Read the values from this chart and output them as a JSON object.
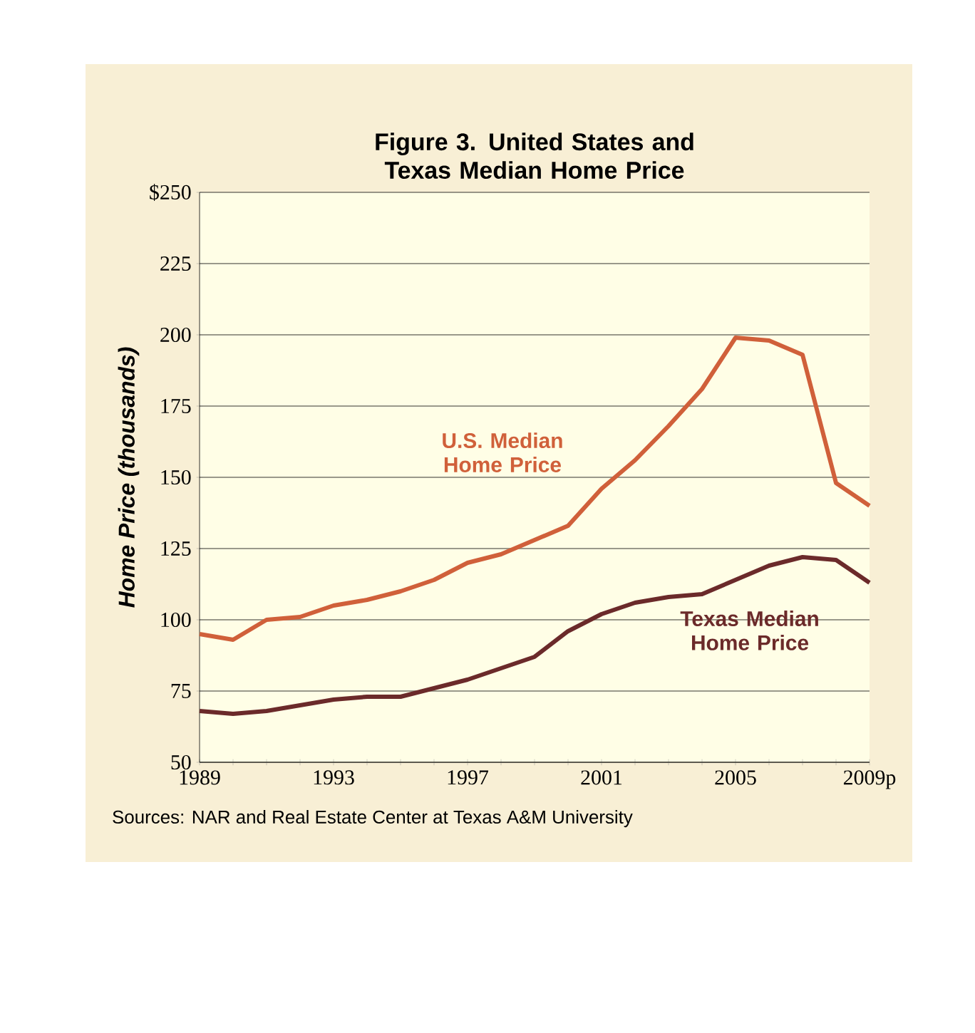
{
  "chart_data": {
    "type": "line",
    "title": "Figure 3. United States and Texas Median Home Price",
    "ylabel": "Home Price (thousands)",
    "x": [
      1989,
      1990,
      1991,
      1992,
      1993,
      1994,
      1995,
      1996,
      1997,
      1998,
      1999,
      2000,
      2001,
      2002,
      2003,
      2004,
      2005,
      2006,
      2007,
      2008,
      2009
    ],
    "series": [
      {
        "name": "U.S. Median Home Price",
        "color": "#d0603a",
        "values": [
          95,
          93,
          100,
          101,
          105,
          107,
          110,
          114,
          120,
          123,
          128,
          133,
          146,
          156,
          168,
          181,
          199,
          198,
          193,
          148,
          140
        ]
      },
      {
        "name": "Texas Median Home Price",
        "color": "#6b2a2a",
        "values": [
          68,
          67,
          68,
          70,
          72,
          73,
          73,
          76,
          79,
          83,
          87,
          96,
          102,
          106,
          108,
          109,
          114,
          119,
          122,
          121,
          113
        ]
      }
    ],
    "xlim": [
      1989,
      2009
    ],
    "ylim": [
      50,
      250
    ],
    "xticks": [
      {
        "value": 1989,
        "label": "1989"
      },
      {
        "value": 1990,
        "label": null
      },
      {
        "value": 1991,
        "label": null
      },
      {
        "value": 1992,
        "label": null
      },
      {
        "value": 1993,
        "label": "1993"
      },
      {
        "value": 1994,
        "label": null
      },
      {
        "value": 1995,
        "label": null
      },
      {
        "value": 1996,
        "label": null
      },
      {
        "value": 1997,
        "label": "1997"
      },
      {
        "value": 1998,
        "label": null
      },
      {
        "value": 1999,
        "label": null
      },
      {
        "value": 2000,
        "label": null
      },
      {
        "value": 2001,
        "label": "2001"
      },
      {
        "value": 2002,
        "label": null
      },
      {
        "value": 2003,
        "label": null
      },
      {
        "value": 2004,
        "label": null
      },
      {
        "value": 2005,
        "label": "2005"
      },
      {
        "value": 2006,
        "label": null
      },
      {
        "value": 2007,
        "label": null
      },
      {
        "value": 2008,
        "label": null
      },
      {
        "value": 2009,
        "label": "2009p"
      }
    ],
    "yticks": [
      50,
      75,
      100,
      125,
      150,
      175,
      200,
      225,
      {
        "value": 250,
        "label": "$250"
      }
    ],
    "grid": "y",
    "marker": "none",
    "line_style": "solid",
    "annotations": [
      "Sources: NAR and Real Estate Center at Texas A&M University"
    ]
  }
}
